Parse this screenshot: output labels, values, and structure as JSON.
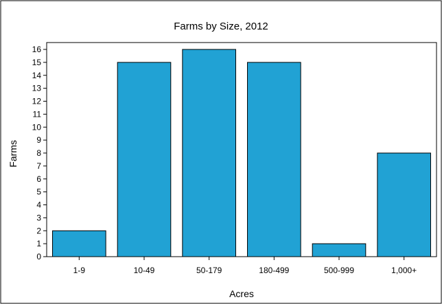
{
  "chart_data": {
    "type": "bar",
    "title": "Farms by Size, 2012",
    "xlabel": "Acres",
    "ylabel": "Farms",
    "categories": [
      "1-9",
      "10-49",
      "50-179",
      "180-499",
      "500-999",
      "1,000+"
    ],
    "values": [
      2,
      15,
      16,
      15,
      1,
      8
    ],
    "ylim": [
      0,
      16
    ],
    "yticks": [
      0,
      1,
      2,
      3,
      4,
      5,
      6,
      7,
      8,
      9,
      10,
      11,
      12,
      13,
      14,
      15,
      16
    ],
    "grid": false,
    "legend": "none",
    "colors": {
      "bar_fill": "#21A2D4",
      "bar_stroke": "#000000",
      "frame": "#000000",
      "background": "#ffffff"
    }
  }
}
